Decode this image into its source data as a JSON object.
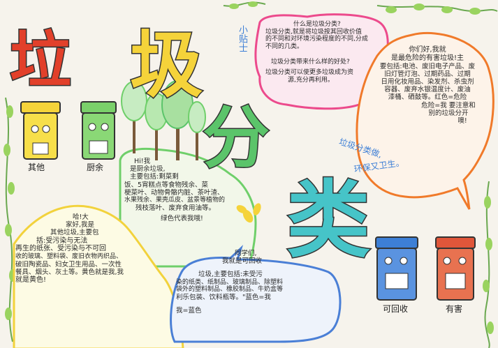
{
  "title": {
    "char1": "垃",
    "char2": "圾",
    "char3": "分",
    "char4": "类"
  },
  "colors": {
    "title1": "#e2402a",
    "title2": "#f5d33a",
    "title3": "#5bc46a",
    "title4": "#46c4c8",
    "pink": "#ec4a8c",
    "orange": "#f07a2a",
    "green": "#6fcf6a",
    "yellow": "#f7e35a"
  },
  "sidebar_note": "小贴士",
  "tip_box": {
    "lines": [
      "什么是垃圾分类?",
      "垃圾分类,就是将垃圾按其回收价值",
      "的不同和对环境污染程度的不同,分成",
      "不同的几类。",
      "垃圾分类带来什么样的好处?",
      "垃圾分类可以使更多垃圾成为资",
      "源,充分再利用。"
    ]
  },
  "hazard_box": {
    "lines": [
      "你们好,我就",
      "是最危险的有害垃圾!主",
      "要包括:电池、废旧电子产品、废",
      "旧灯管灯泡、过期药品、过期",
      "日用化妆用品、染发剂、杀虫剂",
      "容器、废弃水银温度计、废油",
      "漆桶、硒鼓等。红色=危险",
      "危险=我 要注意和",
      "别的垃圾分开",
      "噢!"
    ]
  },
  "slogan": {
    "line1": "垃圾分类做,",
    "line2": "环保又卫生。"
  },
  "kitchen_box": {
    "lines": [
      "Hi!我",
      "是厨余垃圾,",
      "主要包括:剩菜剩",
      "饭、5宵糕点等食物残余、菜",
      "梗菜叶、动物骨骼内脏、茶叶渣、",
      "水果残余、果壳瓜皮、盆景等植物的",
      "残枝落叶、废弃食用油等。",
      "绿色代表我哦!"
    ]
  },
  "other_box": {
    "lines": [
      "哈!大",
      "家好,我是",
      "其他垃圾,主要包",
      "括:受污染与无法",
      "再生的纸张、受污染与不可回",
      "收的玻璃、塑料袋、废旧衣物丙织品、",
      "破旧陶瓷品、妇女卫生用品、一次性",
      "餐具、烟头、灰土等。黄色就是我,我",
      "就是黄色!"
    ]
  },
  "recycle_box": {
    "lines": [
      "同学们,",
      "我就是可回收",
      "垃圾,主要包括:未受污",
      "染的纸类、纸制品、玻璃制品、除塑料",
      "袋外的塑料制品、橡胶制品、牛奶盒等",
      "利乐包装、饮料瓶等。\"蓝色=我",
      "我=蓝色"
    ]
  },
  "bins": [
    {
      "label": "其他",
      "color": "#f2d23c"
    },
    {
      "label": "厨余",
      "color": "#6dc35a"
    },
    {
      "label": "可回收",
      "color": "#3d7fd6"
    },
    {
      "label": "有害",
      "color": "#e0563a"
    }
  ]
}
